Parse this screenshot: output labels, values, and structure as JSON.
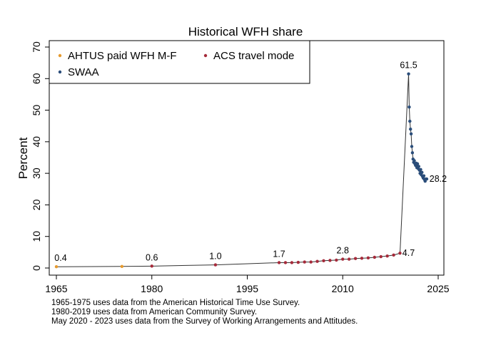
{
  "chart_data": {
    "type": "line",
    "title": "Historical WFH share",
    "ylabel": "Percent",
    "xlabel": "",
    "xlim": [
      1965,
      2025
    ],
    "ylim": [
      0,
      70
    ],
    "xticks": [
      1965,
      1980,
      1995,
      2010,
      2025
    ],
    "yticks": [
      0,
      10,
      20,
      30,
      40,
      50,
      60,
      70
    ],
    "grid": false,
    "legend_position": "top",
    "colors": {
      "line": "#333333",
      "ahtus": "#e69a2e",
      "acs": "#a52a3a",
      "swaa": "#2a4d7a"
    },
    "series": [
      {
        "name": "AHTUS paid WFH M-F",
        "color_key": "ahtus",
        "points": [
          [
            1965.0,
            0.4
          ],
          [
            1975.3,
            0.5
          ]
        ]
      },
      {
        "name": "ACS travel mode",
        "color_key": "acs",
        "points": [
          [
            1980.0,
            0.6
          ],
          [
            1990.0,
            1.0
          ],
          [
            2000.0,
            1.7
          ],
          [
            2001.0,
            1.7
          ],
          [
            2002.0,
            1.7
          ],
          [
            2003.0,
            1.8
          ],
          [
            2004.0,
            1.9
          ],
          [
            2005.0,
            1.9
          ],
          [
            2006.0,
            2.1
          ],
          [
            2007.0,
            2.3
          ],
          [
            2008.0,
            2.4
          ],
          [
            2009.0,
            2.5
          ],
          [
            2010.0,
            2.8
          ],
          [
            2011.0,
            2.8
          ],
          [
            2012.0,
            3.0
          ],
          [
            2013.0,
            3.1
          ],
          [
            2014.0,
            3.2
          ],
          [
            2015.0,
            3.4
          ],
          [
            2016.0,
            3.6
          ],
          [
            2017.0,
            3.8
          ],
          [
            2018.0,
            4.1
          ],
          [
            2019.0,
            4.7
          ]
        ]
      },
      {
        "name": "SWAA",
        "color_key": "swaa",
        "points": [
          [
            2020.35,
            61.5
          ],
          [
            2020.45,
            51.0
          ],
          [
            2020.55,
            46.5
          ],
          [
            2020.65,
            44.0
          ],
          [
            2020.75,
            42.5
          ],
          [
            2020.85,
            38.5
          ],
          [
            2020.95,
            36.5
          ],
          [
            2021.05,
            34.5
          ],
          [
            2021.15,
            33.5
          ],
          [
            2021.25,
            34.0
          ],
          [
            2021.35,
            33.0
          ],
          [
            2021.45,
            32.5
          ],
          [
            2021.55,
            33.2
          ],
          [
            2021.65,
            31.8
          ],
          [
            2021.75,
            33.0
          ],
          [
            2021.85,
            31.5
          ],
          [
            2021.95,
            32.2
          ],
          [
            2022.05,
            31.0
          ],
          [
            2022.15,
            30.0
          ],
          [
            2022.25,
            31.2
          ],
          [
            2022.35,
            29.5
          ],
          [
            2022.45,
            30.3
          ],
          [
            2022.55,
            29.0
          ],
          [
            2022.65,
            28.5
          ],
          [
            2022.75,
            29.2
          ],
          [
            2022.85,
            28.0
          ],
          [
            2022.95,
            27.5
          ],
          [
            2023.05,
            28.2
          ],
          [
            2023.2,
            28.2
          ]
        ]
      }
    ],
    "annotations": [
      {
        "x": 1965.0,
        "y": 0.4,
        "text": "0.4",
        "dx": 6,
        "dy": -8
      },
      {
        "x": 1980.0,
        "y": 0.6,
        "text": "0.6",
        "dx": 0,
        "dy": -8
      },
      {
        "x": 1990.0,
        "y": 1.0,
        "text": "1.0",
        "dx": 0,
        "dy": -8
      },
      {
        "x": 2000.0,
        "y": 1.7,
        "text": "1.7",
        "dx": 0,
        "dy": -8
      },
      {
        "x": 2010.0,
        "y": 2.8,
        "text": "2.8",
        "dx": 0,
        "dy": -8
      },
      {
        "x": 2019.0,
        "y": 4.7,
        "text": "4.7",
        "dx": 12,
        "dy": 4
      },
      {
        "x": 2020.35,
        "y": 61.5,
        "text": "61.5",
        "dx": 0,
        "dy": -8
      },
      {
        "x": 2023.2,
        "y": 28.2,
        "text": "28.2",
        "dx": 16,
        "dy": 4
      }
    ]
  },
  "notes": {
    "line1": "1965-1975 uses data from the American Historical Time Use Survey.",
    "line2": "1980-2019 uses data from American Community Survey.",
    "line3": "May 2020 -  2023 uses data from the Survey of Working Arrangements and Attitudes."
  }
}
